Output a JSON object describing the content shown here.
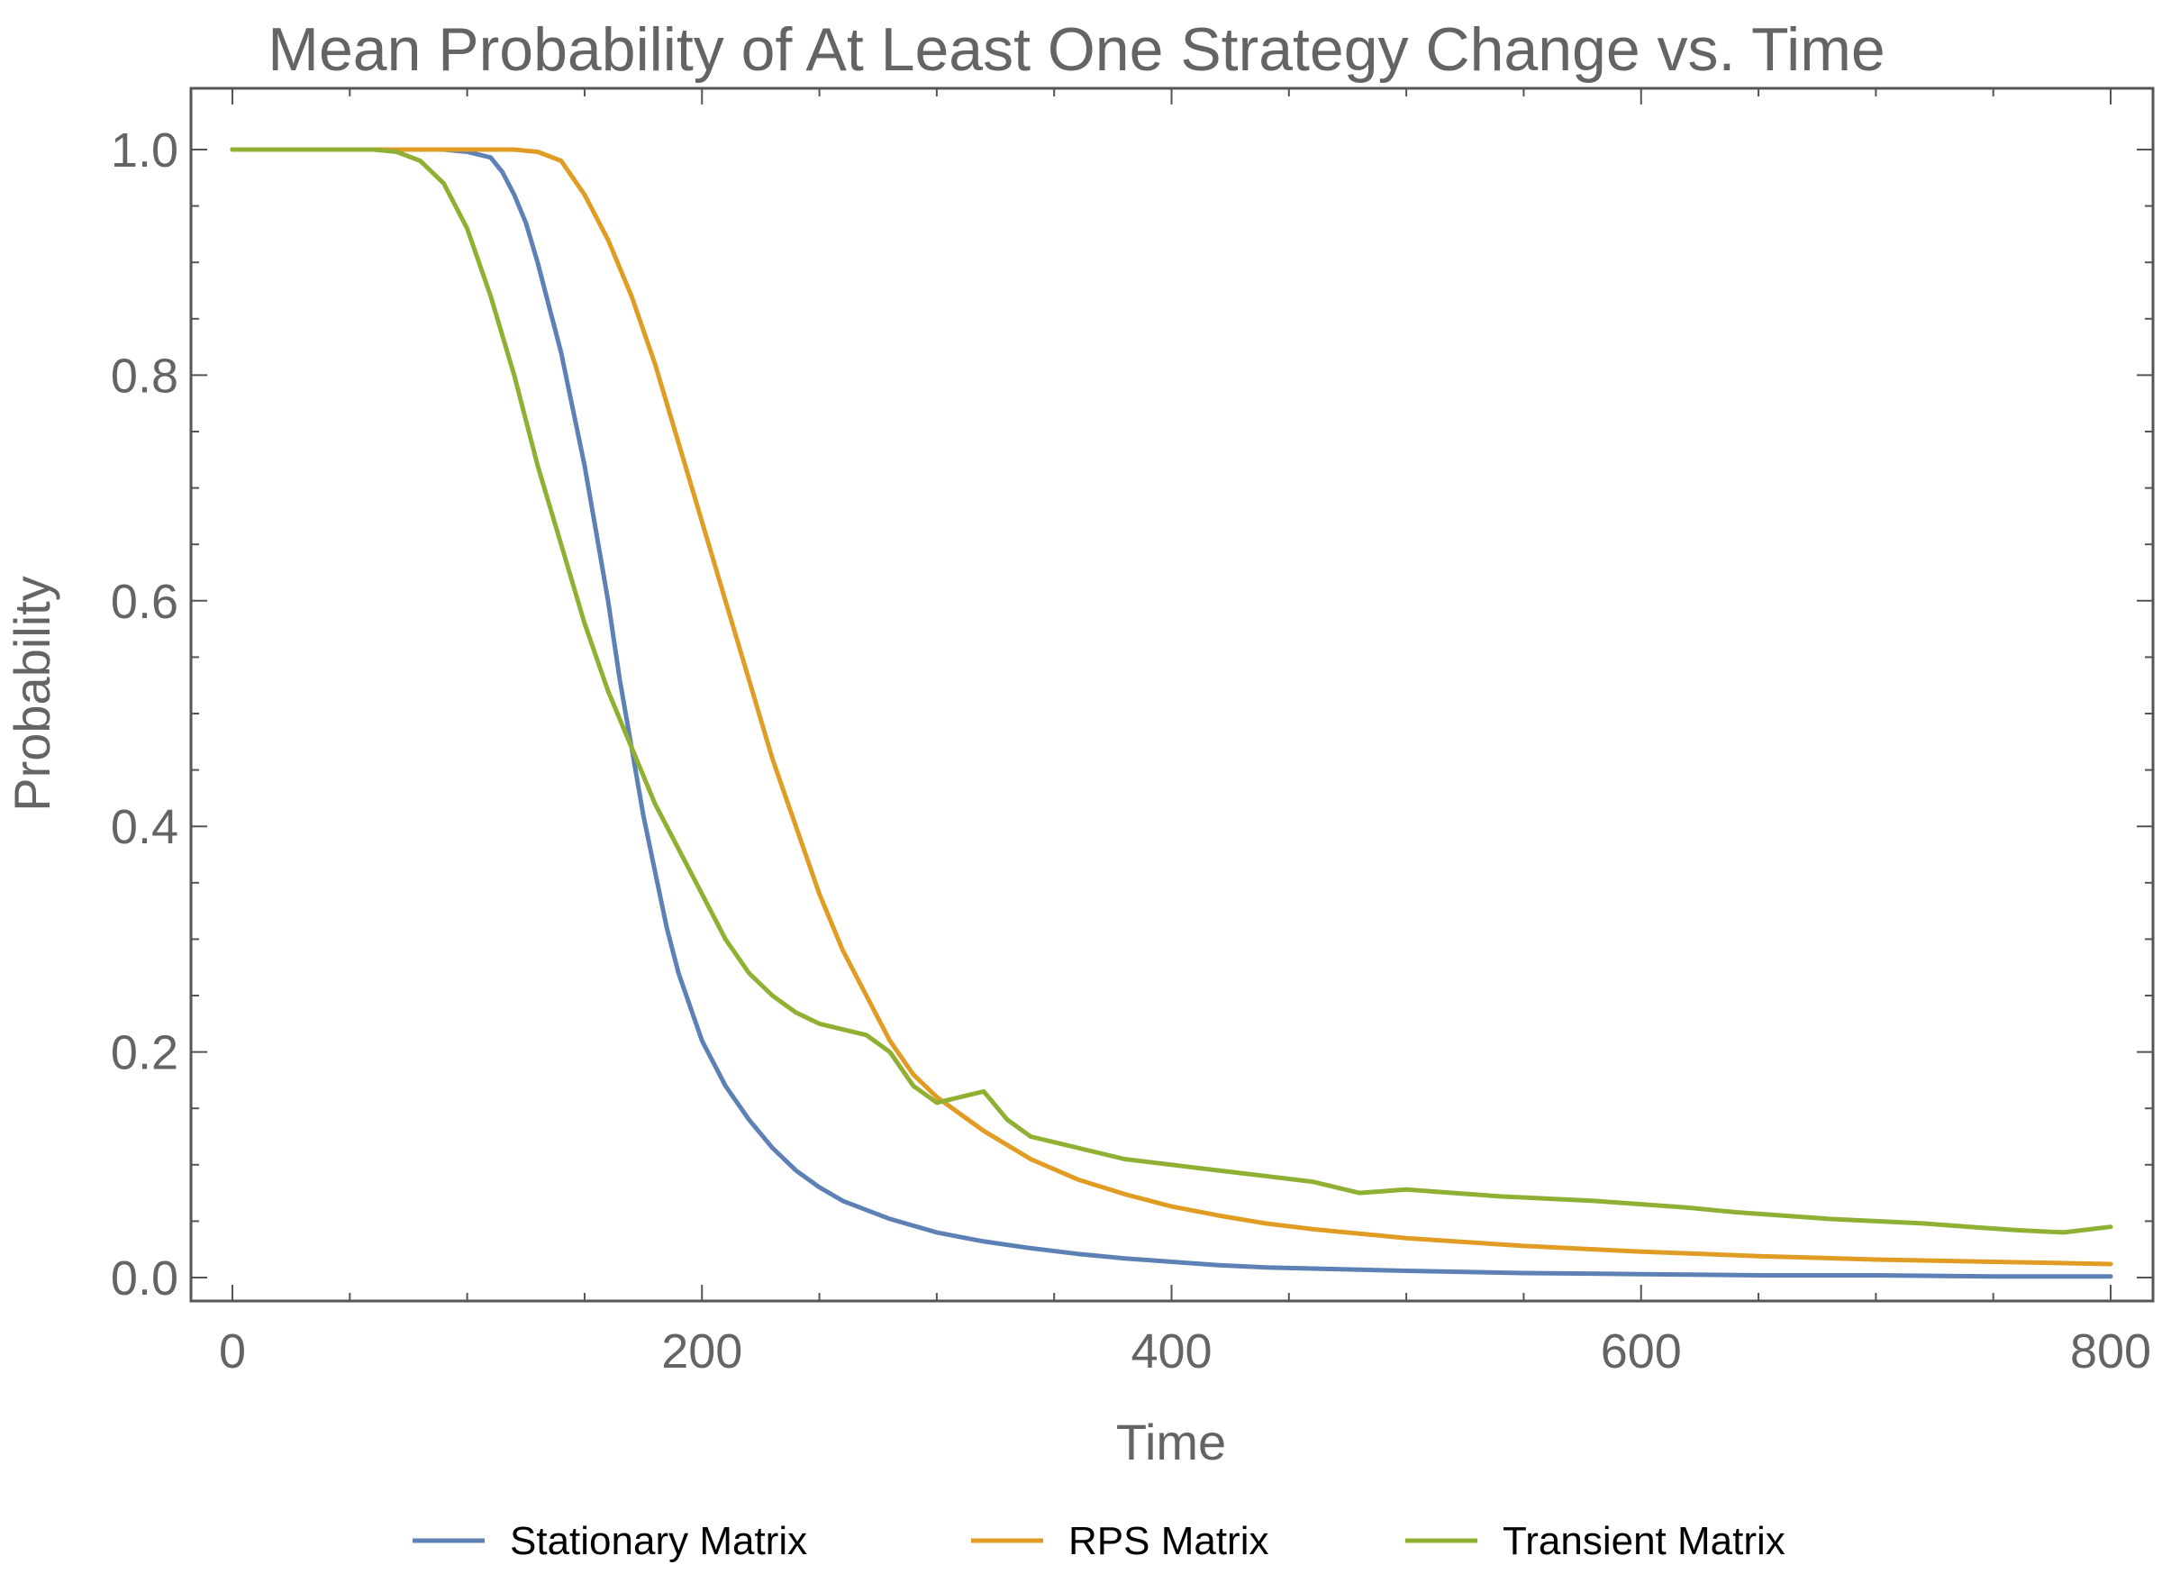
{
  "chart_data": {
    "type": "line",
    "title": "Mean Probability of At Least One Strategy Change vs. Time",
    "xlabel": "Time",
    "ylabel": "Probability",
    "xlim": [
      0,
      800
    ],
    "ylim": [
      0.0,
      1.0
    ],
    "x_ticks": [
      {
        "value": 0,
        "label": "0"
      },
      {
        "value": 200,
        "label": "200"
      },
      {
        "value": 400,
        "label": "400"
      },
      {
        "value": 600,
        "label": "600"
      },
      {
        "value": 800,
        "label": "800"
      }
    ],
    "y_ticks": [
      {
        "value": 0.0,
        "label": "0.0"
      },
      {
        "value": 0.2,
        "label": "0.2"
      },
      {
        "value": 0.4,
        "label": "0.4"
      },
      {
        "value": 0.6,
        "label": "0.6"
      },
      {
        "value": 0.8,
        "label": "0.8"
      },
      {
        "value": 1.0,
        "label": "1.0"
      }
    ],
    "grid": false,
    "legend_position": "bottom",
    "series": [
      {
        "name": "Stationary Matrix",
        "color": "#5E81B5",
        "x": [
          0,
          60,
          90,
          100,
          110,
          115,
          120,
          125,
          130,
          135,
          140,
          145,
          150,
          155,
          160,
          165,
          170,
          175,
          180,
          185,
          190,
          195,
          200,
          210,
          220,
          230,
          240,
          250,
          260,
          280,
          300,
          320,
          340,
          360,
          380,
          400,
          420,
          440,
          460,
          480,
          500,
          550,
          600,
          650,
          700,
          750,
          800
        ],
        "y": [
          1.0,
          1.0,
          1.0,
          0.998,
          0.993,
          0.98,
          0.96,
          0.935,
          0.9,
          0.86,
          0.82,
          0.77,
          0.72,
          0.66,
          0.6,
          0.53,
          0.47,
          0.41,
          0.36,
          0.31,
          0.27,
          0.24,
          0.21,
          0.17,
          0.14,
          0.115,
          0.095,
          0.08,
          0.068,
          0.052,
          0.04,
          0.032,
          0.026,
          0.021,
          0.017,
          0.014,
          0.011,
          0.009,
          0.008,
          0.007,
          0.006,
          0.004,
          0.003,
          0.002,
          0.002,
          0.001,
          0.001
        ]
      },
      {
        "name": "RPS Matrix",
        "color": "#E19C24",
        "x": [
          0,
          100,
          120,
          130,
          140,
          150,
          160,
          170,
          180,
          190,
          200,
          210,
          220,
          230,
          240,
          250,
          260,
          270,
          280,
          290,
          300,
          320,
          340,
          360,
          380,
          400,
          420,
          440,
          460,
          480,
          500,
          550,
          600,
          650,
          700,
          750,
          800
        ],
        "y": [
          1.0,
          1.0,
          1.0,
          0.998,
          0.99,
          0.96,
          0.92,
          0.87,
          0.81,
          0.74,
          0.67,
          0.6,
          0.53,
          0.46,
          0.4,
          0.34,
          0.29,
          0.25,
          0.21,
          0.18,
          0.16,
          0.13,
          0.105,
          0.087,
          0.074,
          0.063,
          0.055,
          0.048,
          0.043,
          0.039,
          0.035,
          0.028,
          0.023,
          0.019,
          0.016,
          0.014,
          0.012
        ]
      },
      {
        "name": "Transient Matrix",
        "color": "#8FB032",
        "x": [
          0,
          60,
          70,
          80,
          90,
          100,
          110,
          120,
          130,
          140,
          150,
          160,
          170,
          180,
          190,
          200,
          210,
          220,
          230,
          240,
          250,
          260,
          270,
          280,
          290,
          300,
          310,
          320,
          330,
          340,
          360,
          380,
          400,
          420,
          440,
          460,
          480,
          500,
          520,
          540,
          560,
          580,
          600,
          620,
          640,
          660,
          680,
          700,
          720,
          740,
          760,
          780,
          800
        ],
        "y": [
          1.0,
          1.0,
          0.998,
          0.99,
          0.97,
          0.93,
          0.87,
          0.8,
          0.72,
          0.65,
          0.58,
          0.52,
          0.47,
          0.42,
          0.38,
          0.34,
          0.3,
          0.27,
          0.25,
          0.235,
          0.225,
          0.22,
          0.215,
          0.2,
          0.17,
          0.155,
          0.16,
          0.165,
          0.14,
          0.125,
          0.115,
          0.105,
          0.1,
          0.095,
          0.09,
          0.085,
          0.075,
          0.078,
          0.075,
          0.072,
          0.07,
          0.068,
          0.065,
          0.062,
          0.058,
          0.055,
          0.052,
          0.05,
          0.048,
          0.045,
          0.042,
          0.04,
          0.045
        ]
      }
    ]
  }
}
